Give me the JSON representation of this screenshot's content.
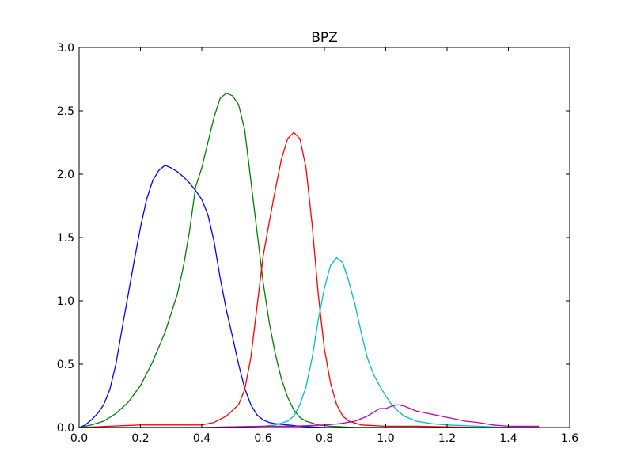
{
  "chart_data": {
    "type": "line",
    "title": "BPZ",
    "xlabel": "",
    "ylabel": "",
    "xlim": [
      0.0,
      1.6
    ],
    "ylim": [
      0.0,
      3.0
    ],
    "x_ticks": [
      0.0,
      0.2,
      0.4,
      0.6,
      0.8,
      1.0,
      1.2,
      1.4,
      1.6
    ],
    "y_ticks": [
      0.0,
      0.5,
      1.0,
      1.5,
      2.0,
      2.5,
      3.0
    ],
    "x_tick_labels": [
      "0.0",
      "0.2",
      "0.4",
      "0.6",
      "0.8",
      "1.0",
      "1.2",
      "1.4",
      "1.6"
    ],
    "y_tick_labels": [
      "0.0",
      "0.5",
      "1.0",
      "1.5",
      "2.0",
      "2.5",
      "3.0"
    ],
    "grid": false,
    "legend": "none",
    "series": [
      {
        "color": "#0000ff",
        "points": [
          [
            0.0,
            0.0
          ],
          [
            0.02,
            0.02
          ],
          [
            0.04,
            0.06
          ],
          [
            0.06,
            0.11
          ],
          [
            0.08,
            0.18
          ],
          [
            0.1,
            0.3
          ],
          [
            0.12,
            0.5
          ],
          [
            0.14,
            0.78
          ],
          [
            0.16,
            1.05
          ],
          [
            0.18,
            1.32
          ],
          [
            0.2,
            1.58
          ],
          [
            0.22,
            1.8
          ],
          [
            0.24,
            1.95
          ],
          [
            0.26,
            2.03
          ],
          [
            0.28,
            2.07
          ],
          [
            0.3,
            2.05
          ],
          [
            0.32,
            2.02
          ],
          [
            0.34,
            1.98
          ],
          [
            0.36,
            1.93
          ],
          [
            0.38,
            1.87
          ],
          [
            0.4,
            1.8
          ],
          [
            0.42,
            1.68
          ],
          [
            0.44,
            1.47
          ],
          [
            0.46,
            1.18
          ],
          [
            0.48,
            0.93
          ],
          [
            0.5,
            0.72
          ],
          [
            0.52,
            0.5
          ],
          [
            0.54,
            0.31
          ],
          [
            0.56,
            0.18
          ],
          [
            0.58,
            0.1
          ],
          [
            0.6,
            0.06
          ],
          [
            0.62,
            0.04
          ],
          [
            0.64,
            0.03
          ],
          [
            0.68,
            0.02
          ],
          [
            0.72,
            0.01
          ],
          [
            0.8,
            0.0
          ],
          [
            1.0,
            0.0
          ],
          [
            1.5,
            0.0
          ]
        ]
      },
      {
        "color": "#008000",
        "points": [
          [
            0.0,
            0.0
          ],
          [
            0.04,
            0.02
          ],
          [
            0.08,
            0.05
          ],
          [
            0.12,
            0.11
          ],
          [
            0.16,
            0.2
          ],
          [
            0.2,
            0.33
          ],
          [
            0.24,
            0.52
          ],
          [
            0.28,
            0.75
          ],
          [
            0.3,
            0.9
          ],
          [
            0.32,
            1.05
          ],
          [
            0.34,
            1.27
          ],
          [
            0.36,
            1.55
          ],
          [
            0.38,
            1.9
          ],
          [
            0.4,
            2.05
          ],
          [
            0.42,
            2.25
          ],
          [
            0.44,
            2.45
          ],
          [
            0.46,
            2.6
          ],
          [
            0.48,
            2.64
          ],
          [
            0.5,
            2.62
          ],
          [
            0.52,
            2.55
          ],
          [
            0.54,
            2.35
          ],
          [
            0.56,
            1.95
          ],
          [
            0.58,
            1.55
          ],
          [
            0.6,
            1.15
          ],
          [
            0.62,
            0.83
          ],
          [
            0.64,
            0.58
          ],
          [
            0.66,
            0.38
          ],
          [
            0.68,
            0.24
          ],
          [
            0.7,
            0.14
          ],
          [
            0.72,
            0.08
          ],
          [
            0.74,
            0.05
          ],
          [
            0.78,
            0.02
          ],
          [
            0.82,
            0.01
          ],
          [
            0.9,
            0.0
          ],
          [
            1.5,
            0.0
          ]
        ]
      },
      {
        "color": "#ff0000",
        "points": [
          [
            0.0,
            0.0
          ],
          [
            0.1,
            0.01
          ],
          [
            0.2,
            0.02
          ],
          [
            0.3,
            0.02
          ],
          [
            0.4,
            0.02
          ],
          [
            0.44,
            0.04
          ],
          [
            0.48,
            0.09
          ],
          [
            0.52,
            0.18
          ],
          [
            0.54,
            0.3
          ],
          [
            0.56,
            0.55
          ],
          [
            0.58,
            0.95
          ],
          [
            0.6,
            1.35
          ],
          [
            0.62,
            1.62
          ],
          [
            0.64,
            1.88
          ],
          [
            0.66,
            2.12
          ],
          [
            0.68,
            2.28
          ],
          [
            0.7,
            2.33
          ],
          [
            0.72,
            2.28
          ],
          [
            0.74,
            2.05
          ],
          [
            0.76,
            1.6
          ],
          [
            0.78,
            1.05
          ],
          [
            0.8,
            0.62
          ],
          [
            0.82,
            0.35
          ],
          [
            0.84,
            0.18
          ],
          [
            0.86,
            0.09
          ],
          [
            0.88,
            0.05
          ],
          [
            0.92,
            0.02
          ],
          [
            1.0,
            0.01
          ],
          [
            1.1,
            0.01
          ],
          [
            1.3,
            0.0
          ],
          [
            1.5,
            0.0
          ]
        ]
      },
      {
        "color": "#00bfbf",
        "points": [
          [
            0.0,
            0.0
          ],
          [
            0.4,
            0.0
          ],
          [
            0.6,
            0.01
          ],
          [
            0.64,
            0.02
          ],
          [
            0.68,
            0.05
          ],
          [
            0.7,
            0.09
          ],
          [
            0.72,
            0.18
          ],
          [
            0.74,
            0.32
          ],
          [
            0.76,
            0.55
          ],
          [
            0.78,
            0.85
          ],
          [
            0.8,
            1.1
          ],
          [
            0.82,
            1.28
          ],
          [
            0.84,
            1.34
          ],
          [
            0.86,
            1.3
          ],
          [
            0.88,
            1.15
          ],
          [
            0.9,
            0.97
          ],
          [
            0.92,
            0.75
          ],
          [
            0.94,
            0.55
          ],
          [
            0.96,
            0.42
          ],
          [
            0.98,
            0.33
          ],
          [
            1.0,
            0.25
          ],
          [
            1.02,
            0.18
          ],
          [
            1.04,
            0.13
          ],
          [
            1.06,
            0.09
          ],
          [
            1.1,
            0.05
          ],
          [
            1.15,
            0.03
          ],
          [
            1.2,
            0.02
          ],
          [
            1.3,
            0.01
          ],
          [
            1.4,
            0.0
          ],
          [
            1.5,
            0.0
          ]
        ]
      },
      {
        "color": "#bf00bf",
        "points": [
          [
            0.0,
            0.0
          ],
          [
            0.4,
            0.0
          ],
          [
            0.6,
            0.01
          ],
          [
            0.7,
            0.01
          ],
          [
            0.8,
            0.02
          ],
          [
            0.85,
            0.03
          ],
          [
            0.9,
            0.05
          ],
          [
            0.94,
            0.09
          ],
          [
            0.96,
            0.12
          ],
          [
            0.98,
            0.15
          ],
          [
            1.0,
            0.15
          ],
          [
            1.02,
            0.17
          ],
          [
            1.04,
            0.18
          ],
          [
            1.06,
            0.17
          ],
          [
            1.08,
            0.15
          ],
          [
            1.1,
            0.13
          ],
          [
            1.14,
            0.11
          ],
          [
            1.18,
            0.09
          ],
          [
            1.22,
            0.07
          ],
          [
            1.26,
            0.05
          ],
          [
            1.3,
            0.04
          ],
          [
            1.35,
            0.02
          ],
          [
            1.4,
            0.01
          ],
          [
            1.45,
            0.01
          ],
          [
            1.5,
            0.01
          ]
        ]
      }
    ]
  }
}
